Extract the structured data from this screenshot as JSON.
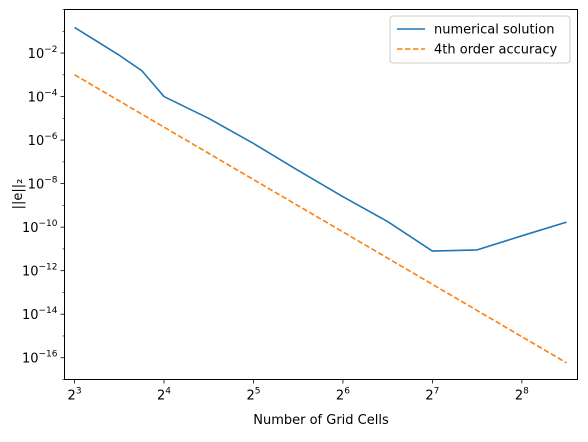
{
  "chart_data": {
    "type": "line",
    "xlabel": "Number of Grid Cells",
    "ylabel": "||e||₂",
    "x_scale": "log2",
    "y_scale": "log10",
    "xlim": [
      7.4,
      394
    ],
    "ylim": [
      1e-17,
      1
    ],
    "x_ticks": [
      {
        "value": 8,
        "base": "2",
        "exp": "3"
      },
      {
        "value": 16,
        "base": "2",
        "exp": "4"
      },
      {
        "value": 32,
        "base": "2",
        "exp": "5"
      },
      {
        "value": 64,
        "base": "2",
        "exp": "6"
      },
      {
        "value": 128,
        "base": "2",
        "exp": "7"
      },
      {
        "value": 256,
        "base": "2",
        "exp": "8"
      }
    ],
    "y_ticks": [
      {
        "value": 0.01,
        "base": "10",
        "exp": "−2"
      },
      {
        "value": 0.0001,
        "base": "10",
        "exp": "−4"
      },
      {
        "value": 1e-06,
        "base": "10",
        "exp": "−6"
      },
      {
        "value": 1e-08,
        "base": "10",
        "exp": "−8"
      },
      {
        "value": 1e-10,
        "base": "10",
        "exp": "−10"
      },
      {
        "value": 1e-12,
        "base": "10",
        "exp": "−12"
      },
      {
        "value": 1e-14,
        "base": "10",
        "exp": "−14"
      },
      {
        "value": 1e-16,
        "base": "10",
        "exp": "−16"
      }
    ],
    "grid": false,
    "legend_position": "top-right",
    "series": [
      {
        "name": "numerical solution",
        "color": "#1f77b4",
        "dash": "solid",
        "x": [
          8,
          11.3,
          13.5,
          16,
          22.6,
          32,
          45.3,
          64,
          90.5,
          128,
          181,
          256,
          362
        ],
        "y": [
          0.15,
          0.008,
          0.0015,
          0.0001,
          1e-05,
          7e-07,
          4e-08,
          2.5e-09,
          1.8e-10,
          8e-12,
          9e-12,
          4e-11,
          1.7e-10
        ]
      },
      {
        "name": "4th order accuracy",
        "color": "#ff7f0e",
        "dash": "dashed",
        "x": [
          8,
          362
        ],
        "y": [
          0.001,
          5.8e-17
        ]
      }
    ]
  }
}
